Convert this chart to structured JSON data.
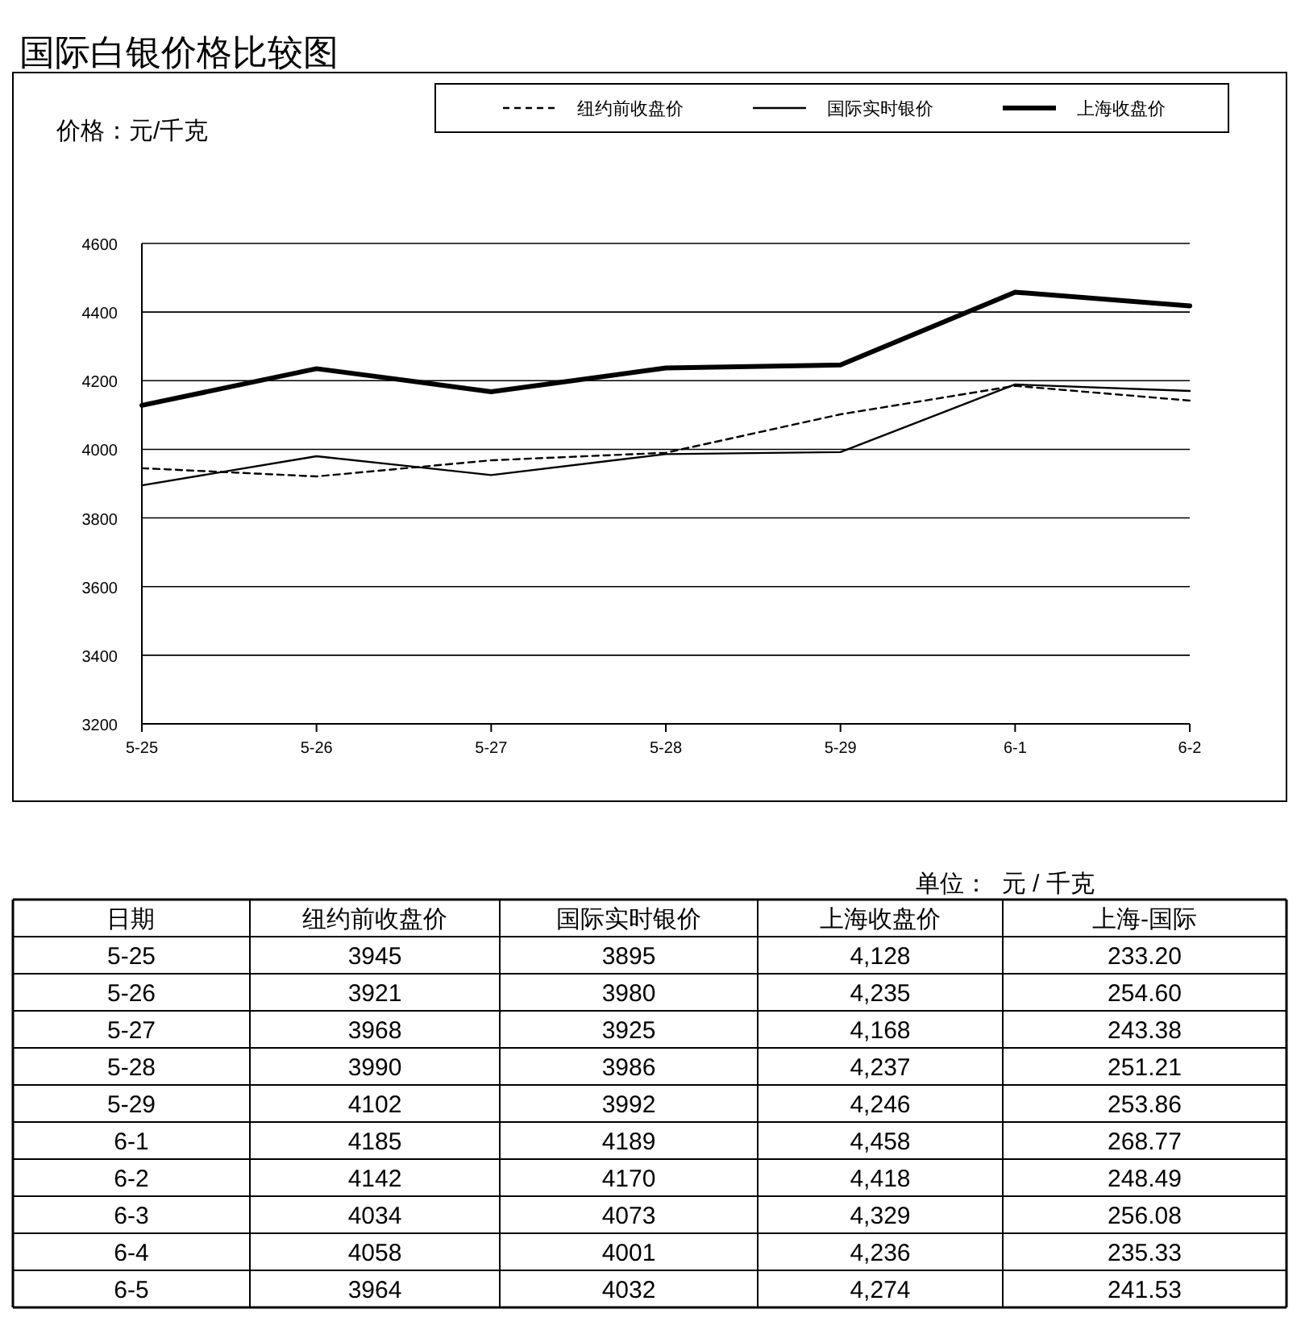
{
  "chart_data": [
    {
      "type": "line",
      "title": "国际白银价格比较图",
      "ylabel": "价格：元/千克",
      "categories": [
        "5-25",
        "5-26",
        "5-27",
        "5-28",
        "5-29",
        "6-1",
        "6-2"
      ],
      "series": [
        {
          "name": "纽约前收盘价",
          "color": "#000000",
          "line_style": "dashed",
          "values": [
            3945,
            3921,
            3968,
            3990,
            4102,
            4185,
            4142
          ]
        },
        {
          "name": "国际实时银价",
          "color": "#000000",
          "line_style": "solid",
          "values": [
            3895,
            3980,
            3925,
            3986,
            3992,
            4189,
            4170
          ]
        },
        {
          "name": "上海收盘价",
          "color": "#000000",
          "line_style": "solid",
          "values": [
            4128,
            4235,
            4168,
            4237,
            4246,
            4458,
            4418
          ]
        }
      ],
      "ylim": [
        3200,
        4600
      ],
      "yticks": [
        3200,
        3400,
        3600,
        3800,
        4000,
        4200,
        4400,
        4600
      ],
      "grid": "y",
      "legend": "top right"
    },
    {
      "type": "other",
      "xlabel": "日期",
      "annotations": [
        "单位：  元 / 千克"
      ],
      "data_labels": true,
      "categories": [
        "5-25",
        "5-26",
        "5-27",
        "5-28",
        "5-29",
        "6-1",
        "6-2",
        "6-3",
        "6-4",
        "6-5"
      ],
      "series": [
        {
          "name": "纽约前收盘价",
          "values": [
            3945,
            3921,
            3968,
            3990,
            4102,
            4185,
            4142,
            4034,
            4058,
            3964
          ]
        },
        {
          "name": "国际实时银价",
          "values": [
            3895,
            3980,
            3925,
            3986,
            3992,
            4189,
            4170,
            4073,
            4001,
            4032
          ]
        },
        {
          "name": "上海收盘价",
          "values": [
            4128,
            4235,
            4168,
            4237,
            4246,
            4458,
            4418,
            4329,
            4236,
            4274
          ],
          "value_labels": [
            "4,128",
            "4,235",
            "4,168",
            "4,237",
            "4,246",
            "4,458",
            "4,418",
            "4,329",
            "4,236",
            "4,274"
          ]
        },
        {
          "name": "上海-国际",
          "values": [
            233.2,
            254.6,
            243.38,
            251.21,
            253.86,
            268.77,
            248.49,
            256.08,
            235.33,
            241.53
          ],
          "value_labels": [
            "233.20",
            "254.60",
            "243.38",
            "251.21",
            "253.86",
            "268.77",
            "248.49",
            "256.08",
            "235.33",
            "241.53"
          ]
        }
      ]
    }
  ]
}
